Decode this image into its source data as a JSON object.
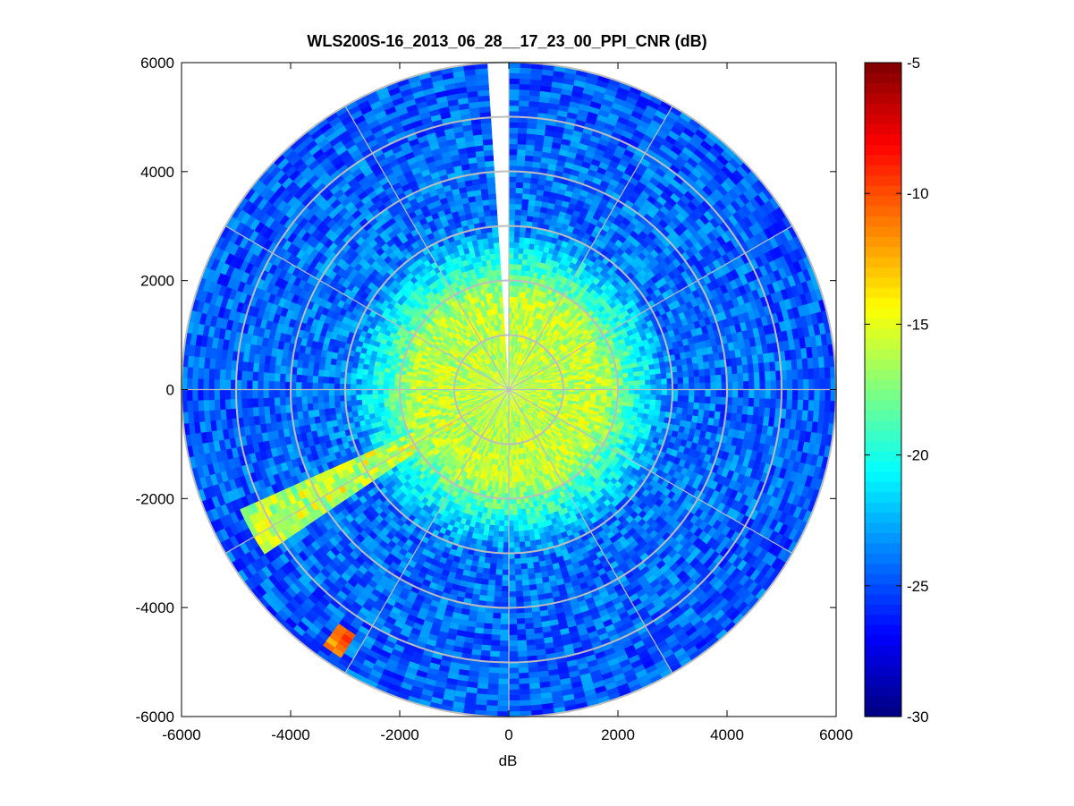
{
  "chart_data": {
    "type": "heatmap",
    "subtype": "polar-ppi",
    "title": "WLS200S-16_2013_06_28__17_23_00_PPI_CNR (dB)",
    "xlabel": "dB",
    "ylabel": "",
    "xlim": [
      -6000,
      6000
    ],
    "ylim": [
      -6000,
      6000
    ],
    "x_ticks": [
      -6000,
      -4000,
      -2000,
      0,
      2000,
      4000,
      6000
    ],
    "y_ticks": [
      -6000,
      -4000,
      -2000,
      0,
      2000,
      4000,
      6000
    ],
    "x_tick_labels": [
      "-6000",
      "-4000",
      "-2000",
      "0",
      "2000",
      "4000",
      "6000"
    ],
    "y_tick_labels": [
      "-6000",
      "-4000",
      "-2000",
      "0",
      "2000",
      "4000",
      "6000"
    ],
    "max_range": 6000,
    "range_rings": [
      1000,
      2000,
      3000,
      4000,
      5000,
      6000
    ],
    "spoke_angles_deg": [
      0,
      30,
      60,
      90,
      120,
      150,
      180,
      210,
      240,
      270,
      300,
      330
    ],
    "range_gate_m": 100,
    "azimuth_step_deg": 2,
    "colorbar": {
      "min": -30,
      "max": -5,
      "ticks": [
        -5,
        -10,
        -15,
        -20,
        -25,
        -30
      ],
      "tick_labels": [
        "-5",
        "-10",
        "-15",
        "-20",
        "-25",
        "-30"
      ],
      "colormap": "jet"
    },
    "features": [
      {
        "description": "near-range high CNR core",
        "range_m": [
          0,
          2000
        ],
        "value_db": -16
      },
      {
        "description": "far-range background",
        "range_m": [
          3000,
          6000
        ],
        "value_db": -24
      },
      {
        "description": "bright beam sector",
        "azimuth_deg": [
          236,
          246
        ],
        "range_m": [
          800,
          5400
        ],
        "value_db": -16
      },
      {
        "description": "no-data gap",
        "azimuth_deg": [
          356,
          360
        ],
        "range_m": [
          0,
          6000
        ]
      },
      {
        "description": "hard target hits",
        "azimuth_deg": [
          211,
          216
        ],
        "range_m": [
          5300,
          5800
        ],
        "value_db": -11
      }
    ]
  },
  "colors": {
    "ring": "#bdbdbd",
    "axis": "#000000",
    "background": "#ffffff"
  }
}
